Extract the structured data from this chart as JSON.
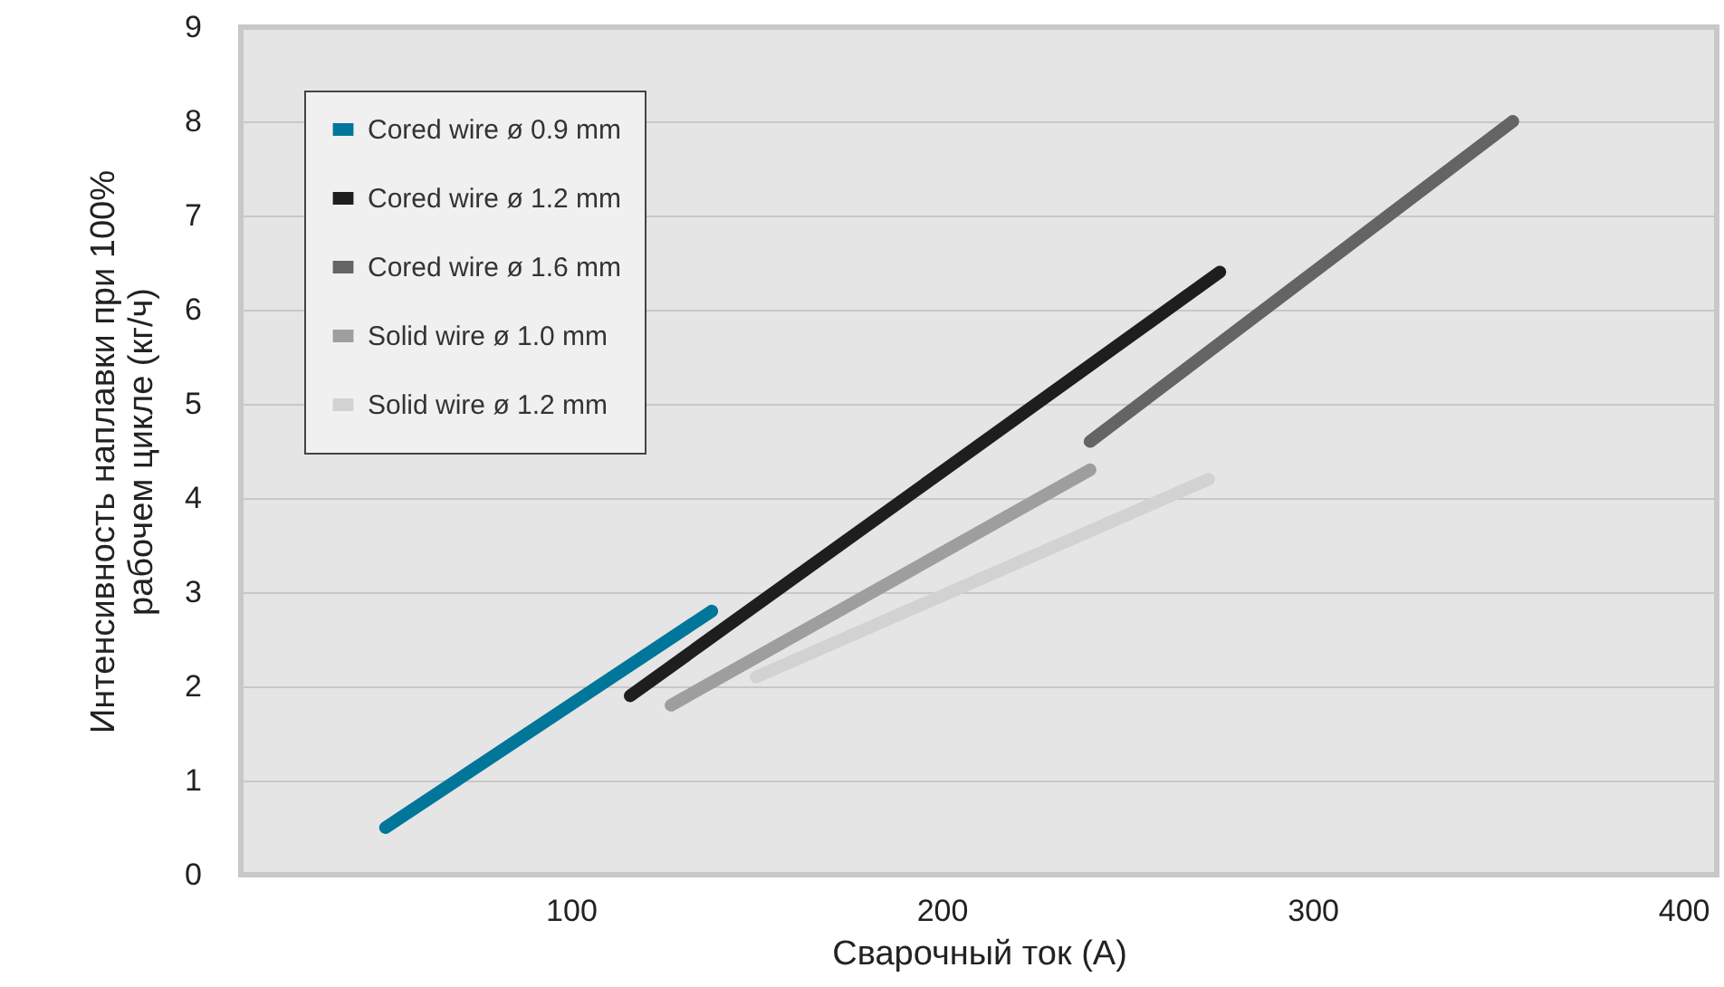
{
  "chart_data": {
    "type": "line",
    "xlabel": "Сварочный ток (А)",
    "ylabel": "Интенсивность наплавки при 100%\nрабочем цикле (кг/ч)",
    "xlim": [
      11,
      409
    ],
    "xticks": [
      100,
      200,
      300,
      400
    ],
    "ylim": [
      0,
      9
    ],
    "yticks": [
      0,
      1,
      2,
      3,
      4,
      5,
      6,
      7,
      8,
      9
    ],
    "grid": "y",
    "legend": "top left",
    "line_style": "solid",
    "marker": "none",
    "series": [
      {
        "name": "Cored wire ø 0.9 mm",
        "color": "#00769b",
        "x": [
          50,
          138
        ],
        "values": [
          0.5,
          2.8
        ]
      },
      {
        "name": "Cored wire ø 1.2 mm",
        "color": "#1e1e1e",
        "x": [
          116,
          275
        ],
        "values": [
          1.9,
          6.4
        ]
      },
      {
        "name": "Cored wire ø 1.6 mm",
        "color": "#646464",
        "x": [
          240,
          354
        ],
        "values": [
          4.6,
          8.0
        ]
      },
      {
        "name": "Solid wire ø 1.0 mm",
        "color": "#9e9e9e",
        "x": [
          127,
          240
        ],
        "values": [
          1.8,
          4.3
        ]
      },
      {
        "name": "Solid wire ø 1.2 mm",
        "color": "#d2d2d2",
        "x": [
          150,
          272
        ],
        "values": [
          2.1,
          4.2
        ]
      }
    ]
  }
}
